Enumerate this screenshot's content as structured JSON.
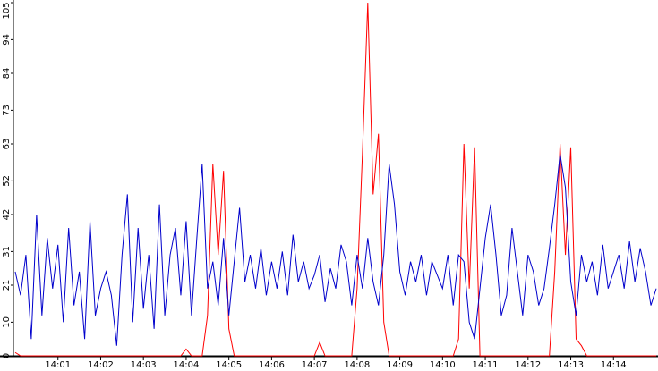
{
  "chart_data": {
    "type": "line",
    "categories": [
      null,
      null,
      null,
      null,
      null,
      null,
      null,
      null,
      "14:01",
      null,
      null,
      null,
      null,
      null,
      null,
      null,
      "14:02",
      null,
      null,
      null,
      null,
      null,
      null,
      null,
      "14:03",
      null,
      null,
      null,
      null,
      null,
      null,
      null,
      "14:04",
      null,
      null,
      null,
      null,
      null,
      null,
      null,
      "14:05",
      null,
      null,
      null,
      null,
      null,
      null,
      null,
      "14:06",
      null,
      null,
      null,
      null,
      null,
      null,
      null,
      "14:07",
      null,
      null,
      null,
      null,
      null,
      null,
      null,
      "14:08",
      null,
      null,
      null,
      null,
      null,
      null,
      null,
      "14:09",
      null,
      null,
      null,
      null,
      null,
      null,
      null,
      "14:10",
      null,
      null,
      null,
      null,
      null,
      null,
      null,
      "14:11",
      null,
      null,
      null,
      null,
      null,
      null,
      null,
      "14:12",
      null,
      null,
      null,
      null,
      null,
      null,
      null,
      "14:13",
      null,
      null,
      null,
      null,
      null,
      null,
      null,
      "14:14",
      null,
      null,
      null,
      null,
      null,
      null,
      null,
      null
    ],
    "series": [
      {
        "color": "#0000cc",
        "values": [
          25,
          18,
          30,
          5,
          42,
          12,
          35,
          20,
          33,
          10,
          38,
          15,
          25,
          5,
          40,
          12,
          20,
          25,
          18,
          3,
          30,
          48,
          10,
          38,
          14,
          30,
          8,
          45,
          12,
          30,
          38,
          18,
          40,
          12,
          35,
          57,
          20,
          28,
          15,
          35,
          12,
          28,
          44,
          22,
          30,
          20,
          32,
          18,
          28,
          20,
          31,
          18,
          36,
          22,
          28,
          20,
          24,
          30,
          16,
          26,
          20,
          33,
          28,
          15,
          30,
          20,
          35,
          22,
          15,
          30,
          57,
          45,
          25,
          18,
          28,
          22,
          30,
          18,
          28,
          24,
          20,
          30,
          15,
          30,
          28,
          10,
          5,
          20,
          35,
          45,
          30,
          12,
          18,
          38,
          25,
          12,
          30,
          25,
          15,
          20,
          32,
          45,
          60,
          50,
          22,
          12,
          30,
          22,
          28,
          18,
          33,
          20,
          25,
          30,
          20,
          34,
          22,
          32,
          25,
          15,
          20
        ]
      },
      {
        "color": "#ff0000",
        "values": [
          1,
          0,
          0,
          0,
          0,
          0,
          0,
          0,
          0,
          0,
          0,
          0,
          0,
          0,
          0,
          0,
          0,
          0,
          0,
          0,
          0,
          0,
          0,
          0,
          0,
          0,
          0,
          0,
          0,
          0,
          0,
          0,
          2,
          0,
          0,
          0,
          12,
          57,
          30,
          55,
          8,
          0,
          0,
          0,
          0,
          0,
          0,
          0,
          0,
          0,
          0,
          0,
          0,
          0,
          0,
          0,
          0,
          4,
          0,
          0,
          0,
          0,
          0,
          0,
          20,
          60,
          105,
          48,
          66,
          10,
          0,
          0,
          0,
          0,
          0,
          0,
          0,
          0,
          0,
          0,
          0,
          0,
          0,
          5,
          63,
          20,
          62,
          0,
          0,
          0,
          0,
          0,
          0,
          0,
          0,
          0,
          0,
          0,
          0,
          0,
          0,
          25,
          63,
          30,
          62,
          5,
          3,
          0,
          0,
          0,
          0,
          0,
          0,
          0,
          0,
          0,
          0,
          0,
          0,
          0,
          0
        ]
      }
    ],
    "ylim": [
      0,
      105
    ],
    "yticks": [
      0,
      10,
      21,
      31,
      42,
      52,
      63,
      73,
      84,
      94,
      105
    ]
  }
}
